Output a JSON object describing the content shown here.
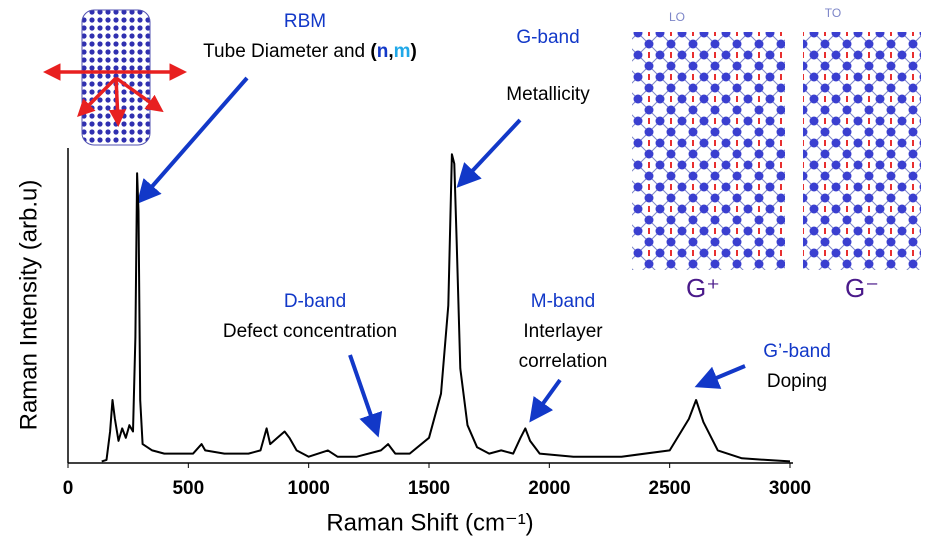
{
  "chart_data": {
    "type": "line",
    "y_label": "Raman Intensity (arb.u)",
    "x_label": "Raman Shift (cm⁻¹)",
    "x": [
      140,
      160,
      175,
      185,
      195,
      210,
      225,
      240,
      255,
      270,
      280,
      287,
      293,
      300,
      310,
      350,
      400,
      450,
      520,
      555,
      570,
      650,
      750,
      800,
      825,
      840,
      870,
      900,
      920,
      950,
      1000,
      1080,
      1120,
      1200,
      1300,
      1330,
      1360,
      1420,
      1500,
      1550,
      1580,
      1595,
      1605,
      1615,
      1630,
      1660,
      1700,
      1750,
      1800,
      1850,
      1880,
      1900,
      1920,
      1960,
      2100,
      2300,
      2500,
      2580,
      2610,
      2640,
      2700,
      2800,
      2900,
      3000
    ],
    "values": [
      0.5,
      1,
      10,
      20,
      14,
      7,
      11,
      8,
      12,
      10,
      40,
      92,
      80,
      20,
      6,
      4,
      3,
      3,
      3,
      6,
      4,
      3,
      3,
      4,
      11,
      6,
      8,
      10,
      8,
      4,
      2,
      4,
      2,
      2,
      4,
      6,
      3,
      3,
      8,
      22,
      50,
      98,
      95,
      70,
      30,
      12,
      5,
      3,
      4,
      3,
      8,
      11,
      7,
      3,
      2,
      2,
      4,
      14,
      20,
      13,
      4,
      1.5,
      1,
      0.5
    ],
    "color": "#000000",
    "xlim": [
      0,
      3000
    ],
    "ylim": [
      0,
      100
    ],
    "xticks": [
      0,
      500,
      1000,
      1500,
      2000,
      2500,
      3000
    ],
    "annotations": {
      "rbm": {
        "title": "RBM",
        "text": "Tube Diameter and",
        "indices": [
          "(",
          "n",
          ",",
          "m",
          ")"
        ]
      },
      "g_band": {
        "title": "G-band",
        "text": "Metallicity"
      },
      "d_band": {
        "title": "D-band",
        "text": "Defect concentration"
      },
      "m_band": {
        "title": "M-band",
        "text": [
          "Interlayer",
          "correlation"
        ]
      },
      "g_prime_band": {
        "title": "G’-band",
        "text": "Doping"
      }
    },
    "images": {
      "lo": "LO",
      "to": "TO",
      "g_plus": "G⁺",
      "g_minus": "G⁻"
    }
  }
}
